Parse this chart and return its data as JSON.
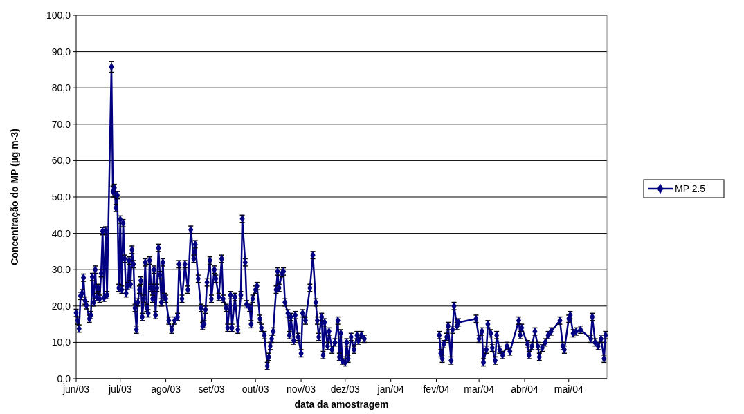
{
  "chart_data": {
    "type": "line",
    "xlabel": "data da amostragem",
    "ylabel": "Concentração do MP (µg m-3)",
    "xlim": [
      "2003-06-01",
      "2004-05-27"
    ],
    "xticks": [
      {
        "value": "2003-06-01",
        "label": "jun/03"
      },
      {
        "value": "2003-07-01",
        "label": "jul/03"
      },
      {
        "value": "2003-08-01",
        "label": "ago/03"
      },
      {
        "value": "2003-09-01",
        "label": "set/03"
      },
      {
        "value": "2003-10-01",
        "label": "out/03"
      },
      {
        "value": "2003-11-01",
        "label": "nov/03"
      },
      {
        "value": "2003-12-01",
        "label": "dez/03"
      },
      {
        "value": "2004-01-01",
        "label": "jan/04"
      },
      {
        "value": "2004-02-01",
        "label": "fev/04"
      },
      {
        "value": "2004-03-01",
        "label": "mar/04"
      },
      {
        "value": "2004-04-01",
        "label": "abr/04"
      },
      {
        "value": "2004-05-01",
        "label": "mai/04"
      }
    ],
    "ylim": [
      0,
      100
    ],
    "yticks": [
      {
        "value": 0,
        "label": "0,0"
      },
      {
        "value": 10,
        "label": "10,0"
      },
      {
        "value": 20,
        "label": "20,0"
      },
      {
        "value": 30,
        "label": "30,0"
      },
      {
        "value": 40,
        "label": "40,0"
      },
      {
        "value": 50,
        "label": "50,0"
      },
      {
        "value": 60,
        "label": "60,0"
      },
      {
        "value": 70,
        "label": "70,0"
      },
      {
        "value": 80,
        "label": "80,0"
      },
      {
        "value": 90,
        "label": "90,0"
      },
      {
        "value": 100,
        "label": "100,0"
      }
    ],
    "grid": "y",
    "legend": "right",
    "marker": "diamond",
    "line_style": "solid",
    "series": [
      {
        "name": "MP 2.5",
        "color": "#000080",
        "x": [
          "2003-06-01",
          "2003-06-02",
          "2003-06-03",
          "2003-06-04",
          "2003-06-05",
          "2003-06-06",
          "2003-06-07",
          "2003-06-08",
          "2003-06-10",
          "2003-06-11",
          "2003-06-12",
          "2003-06-13",
          "2003-06-14",
          "2003-06-15",
          "2003-06-16",
          "2003-06-17",
          "2003-06-18",
          "2003-06-19",
          "2003-06-20",
          "2003-06-21",
          "2003-06-22",
          "2003-06-25",
          "2003-06-26",
          "2003-06-27",
          "2003-06-28",
          "2003-06-29",
          "2003-06-30",
          "2003-07-01",
          "2003-07-02",
          "2003-07-03",
          "2003-07-04",
          "2003-07-05",
          "2003-07-06",
          "2003-07-07",
          "2003-07-08",
          "2003-07-09",
          "2003-07-10",
          "2003-07-11",
          "2003-07-12",
          "2003-07-13",
          "2003-07-14",
          "2003-07-15",
          "2003-07-16",
          "2003-07-17",
          "2003-07-18",
          "2003-07-19",
          "2003-07-20",
          "2003-07-21",
          "2003-07-22",
          "2003-07-23",
          "2003-07-24",
          "2003-07-25",
          "2003-07-26",
          "2003-07-27",
          "2003-07-28",
          "2003-07-29",
          "2003-07-30",
          "2003-07-31",
          "2003-08-01",
          "2003-08-03",
          "2003-08-05",
          "2003-08-07",
          "2003-08-09",
          "2003-08-10",
          "2003-08-12",
          "2003-08-14",
          "2003-08-16",
          "2003-08-18",
          "2003-08-20",
          "2003-08-21",
          "2003-08-23",
          "2003-08-25",
          "2003-08-26",
          "2003-08-27",
          "2003-08-28",
          "2003-08-29",
          "2003-08-31",
          "2003-09-01",
          "2003-09-03",
          "2003-09-04",
          "2003-09-06",
          "2003-09-08",
          "2003-09-09",
          "2003-09-11",
          "2003-09-12",
          "2003-09-14",
          "2003-09-15",
          "2003-09-17",
          "2003-09-19",
          "2003-09-21",
          "2003-09-22",
          "2003-09-24",
          "2003-09-25",
          "2003-09-27",
          "2003-09-28",
          "2003-09-29",
          "2003-10-01",
          "2003-10-02",
          "2003-10-04",
          "2003-10-05",
          "2003-10-07",
          "2003-10-09",
          "2003-10-10",
          "2003-10-11",
          "2003-10-12",
          "2003-10-13",
          "2003-10-15",
          "2003-10-16",
          "2003-10-17",
          "2003-10-19",
          "2003-10-20",
          "2003-10-21",
          "2003-10-23",
          "2003-10-24",
          "2003-10-25",
          "2003-10-27",
          "2003-10-28",
          "2003-10-30",
          "2003-11-01",
          "2003-11-02",
          "2003-11-04",
          "2003-11-07",
          "2003-11-09",
          "2003-11-11",
          "2003-11-12",
          "2003-11-13",
          "2003-11-15",
          "2003-11-16",
          "2003-11-17",
          "2003-11-19",
          "2003-11-20",
          "2003-11-22",
          "2003-11-24",
          "2003-11-26",
          "2003-11-27",
          "2003-11-28",
          "2003-11-29",
          "2003-12-01",
          "2003-12-02",
          "2003-12-03",
          "2003-12-05",
          "2003-12-07",
          "2003-12-09",
          "2003-12-10",
          "2003-12-12",
          "2003-12-14",
          "2004-01-15",
          "2004-02-03",
          "2004-02-04",
          "2004-02-05",
          "2004-02-06",
          "2004-02-08",
          "2004-02-09",
          "2004-02-11",
          "2004-02-12",
          "2004-02-13",
          "2004-02-15",
          "2004-02-16",
          "2004-02-28",
          "2004-03-01",
          "2004-03-03",
          "2004-03-04",
          "2004-03-06",
          "2004-03-07",
          "2004-03-09",
          "2004-03-10",
          "2004-03-12",
          "2004-03-13",
          "2004-03-15",
          "2004-03-17",
          "2004-03-20",
          "2004-03-22",
          "2004-03-28",
          "2004-03-29",
          "2004-03-30",
          "2004-04-03",
          "2004-04-04",
          "2004-04-06",
          "2004-04-08",
          "2004-04-10",
          "2004-04-11",
          "2004-04-13",
          "2004-04-15",
          "2004-04-17",
          "2004-04-19",
          "2004-04-25",
          "2004-04-27",
          "2004-04-28",
          "2004-05-01",
          "2004-05-02",
          "2004-05-04",
          "2004-05-06",
          "2004-05-09",
          "2004-05-16",
          "2004-05-17",
          "2004-05-19",
          "2004-05-21",
          "2004-05-23",
          "2004-05-25",
          "2004-05-26"
        ],
        "values": [
          18.1,
          16,
          13.8,
          22.8,
          23.5,
          27.8,
          21.5,
          20.2,
          16.5,
          17.5,
          28,
          21,
          30,
          22.5,
          25,
          22,
          29,
          40.6,
          22.3,
          40.8,
          23,
          85.8,
          51.5,
          52.5,
          47,
          50.5,
          25,
          43.8,
          24.5,
          42.8,
          33,
          23.5,
          25.5,
          32.5,
          26,
          35.5,
          31.5,
          19.5,
          13.5,
          21,
          24.5,
          27,
          17,
          22,
          32,
          19.5,
          18,
          32.5,
          25,
          22,
          30,
          17.5,
          25,
          36,
          28.5,
          21,
          32,
          22.5,
          22,
          16,
          13.5,
          16,
          17,
          31.5,
          22,
          31.5,
          24.5,
          41,
          33,
          37,
          27.5,
          19.5,
          14.5,
          15,
          19,
          26.5,
          32.5,
          22,
          30,
          27.5,
          22.5,
          33,
          22,
          19.5,
          14,
          23,
          14,
          22.5,
          13.5,
          23,
          44,
          32,
          20.5,
          19.5,
          15,
          22,
          24.5,
          25.5,
          16.5,
          14,
          12,
          3.5,
          6,
          9,
          11,
          13,
          24.5,
          29.5,
          25,
          29,
          29.5,
          21,
          18,
          12,
          17,
          10.5,
          17.5,
          11.5,
          7,
          18,
          16,
          25,
          34,
          21,
          16,
          11.5,
          17,
          6.5,
          15.5,
          9,
          13,
          8,
          10,
          16,
          6,
          12.5,
          5,
          4.5,
          10,
          5.5,
          11.5,
          8,
          12,
          10.5,
          12,
          11,
          null,
          12,
          7,
          5.5,
          9.5,
          11.5,
          14.5,
          5,
          13.5,
          20,
          14.5,
          15.5,
          16.5,
          11,
          13,
          4.5,
          8,
          15,
          12.5,
          8.5,
          5,
          12,
          8,
          6.5,
          9,
          7.5,
          16,
          12,
          14,
          9.5,
          6.5,
          9,
          13,
          9,
          6,
          8.5,
          10,
          12,
          13,
          16,
          9,
          8,
          16.5,
          17.5,
          12.5,
          13,
          13.5,
          11,
          17,
          10,
          9,
          11,
          5.5,
          12
        ],
        "errors": [
          1,
          1,
          1,
          1,
          1,
          1,
          1,
          1,
          1,
          1,
          1,
          1,
          1,
          1,
          1,
          1,
          1,
          1,
          1,
          1,
          1,
          1.5,
          1.5,
          1,
          1,
          1,
          1,
          1,
          1,
          1,
          1,
          1,
          1,
          1,
          1,
          1,
          1,
          1,
          1,
          1,
          1,
          1,
          1,
          1,
          1,
          1,
          1,
          1,
          1,
          1,
          1,
          1,
          1,
          1,
          1,
          1,
          1,
          1,
          1,
          1,
          1,
          1,
          1,
          1,
          1,
          1,
          1,
          1,
          1,
          1,
          1,
          1,
          1,
          1,
          1,
          1,
          1,
          1,
          1,
          1,
          1,
          1,
          1,
          1,
          1,
          1,
          1,
          1,
          1,
          1,
          1,
          1,
          1,
          1,
          1,
          1,
          1,
          1,
          1,
          1,
          1,
          1,
          1,
          1,
          1,
          1,
          1,
          1,
          1,
          1,
          1,
          1,
          1,
          1,
          1,
          1,
          1,
          1,
          1,
          1,
          1,
          1,
          1,
          1,
          1,
          1,
          1,
          1,
          1,
          1,
          1,
          1,
          1,
          1,
          1,
          1,
          1,
          1,
          1,
          1,
          1,
          1,
          1,
          1,
          1,
          1,
          null,
          1,
          1,
          1,
          1,
          1,
          1,
          1,
          1,
          1,
          1,
          1,
          1,
          1,
          1,
          1,
          1,
          1,
          1,
          1,
          1,
          1,
          1,
          1,
          1,
          1,
          1,
          1,
          1,
          1,
          1,
          1,
          1,
          1,
          1,
          1,
          1,
          1,
          1,
          1,
          1,
          1,
          1,
          1,
          1,
          1,
          1,
          1,
          1,
          1,
          1,
          1,
          1,
          1
        ]
      }
    ]
  }
}
